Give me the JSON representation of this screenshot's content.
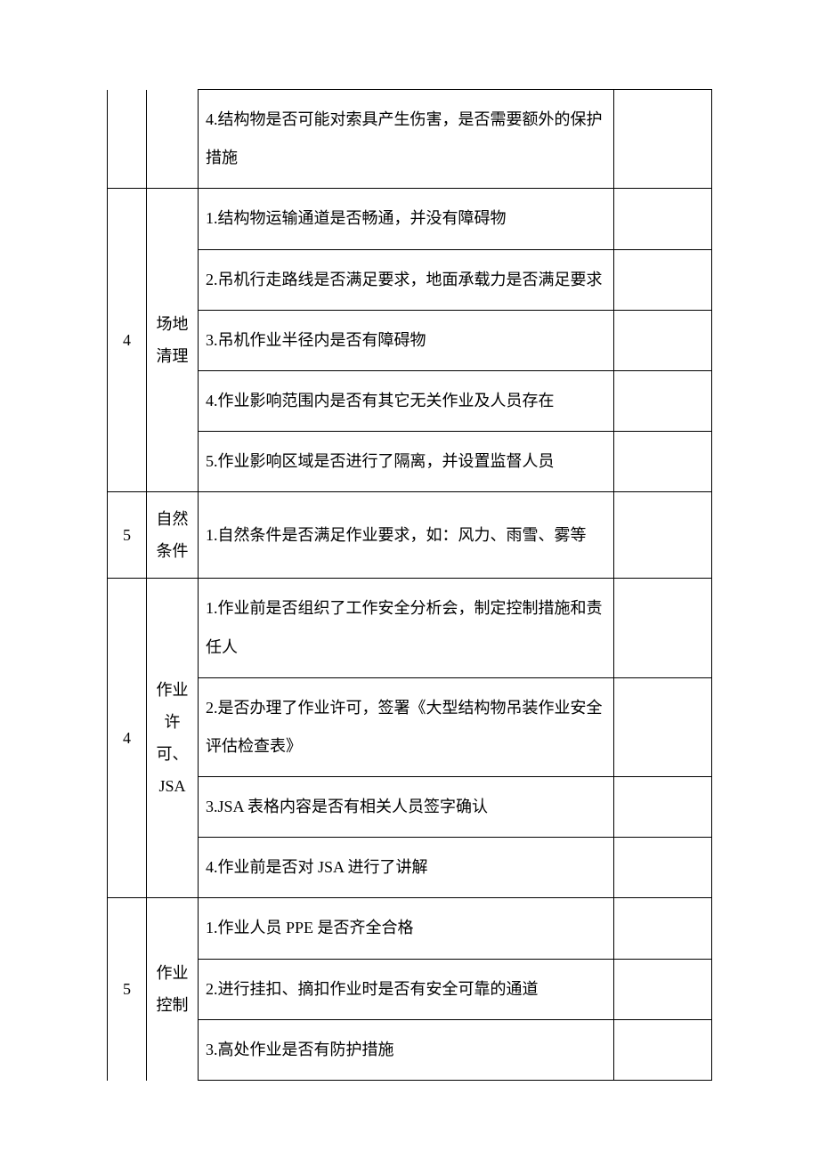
{
  "rows": [
    {
      "num": "",
      "cat": "",
      "desc": "4.结构物是否可能对索具产生伤害，是否需要额外的保护措施",
      "numSpan": 1,
      "catSpan": 1,
      "numNoTop": true,
      "numNoBottom": true,
      "catNoTop": true,
      "catNoBottom": true
    },
    {
      "num": "4",
      "cat": "场地清理",
      "desc": "1.结构物运输通道是否畅通，并没有障碍物",
      "numSpan": 5,
      "catSpan": 5
    },
    {
      "desc": "2.吊机行走路线是否满足要求，地面承载力是否满足要求"
    },
    {
      "desc": "3.吊机作业半径内是否有障碍物"
    },
    {
      "desc": "4.作业影响范围内是否有其它无关作业及人员存在"
    },
    {
      "desc": "5.作业影响区域是否进行了隔离，并设置监督人员"
    },
    {
      "num": "5",
      "cat": "自然条件",
      "desc": "1.自然条件是否满足作业要求，如：风力、雨雪、雾等",
      "numSpan": 1,
      "catSpan": 1
    },
    {
      "num": "4",
      "cat": "作业许可、JSA",
      "desc": "1.作业前是否组织了工作安全分析会，制定控制措施和责任人",
      "numSpan": 4,
      "catSpan": 4
    },
    {
      "desc": "2.是否办理了作业许可，签署《大型结构物吊装作业安全评估检查表》"
    },
    {
      "desc": "3.JSA 表格内容是否有相关人员签字确认"
    },
    {
      "desc": "4.作业前是否对 JSA 进行了讲解"
    },
    {
      "num": "5",
      "cat": "作业控制",
      "desc": "1.作业人员 PPE 是否齐全合格",
      "numSpan": 3,
      "catSpan": 3,
      "numNoBottom": true,
      "catNoBottom": true
    },
    {
      "desc": "2.进行挂扣、摘扣作业时是否有安全可靠的通道"
    },
    {
      "desc": "3.高处作业是否有防护措施"
    }
  ]
}
